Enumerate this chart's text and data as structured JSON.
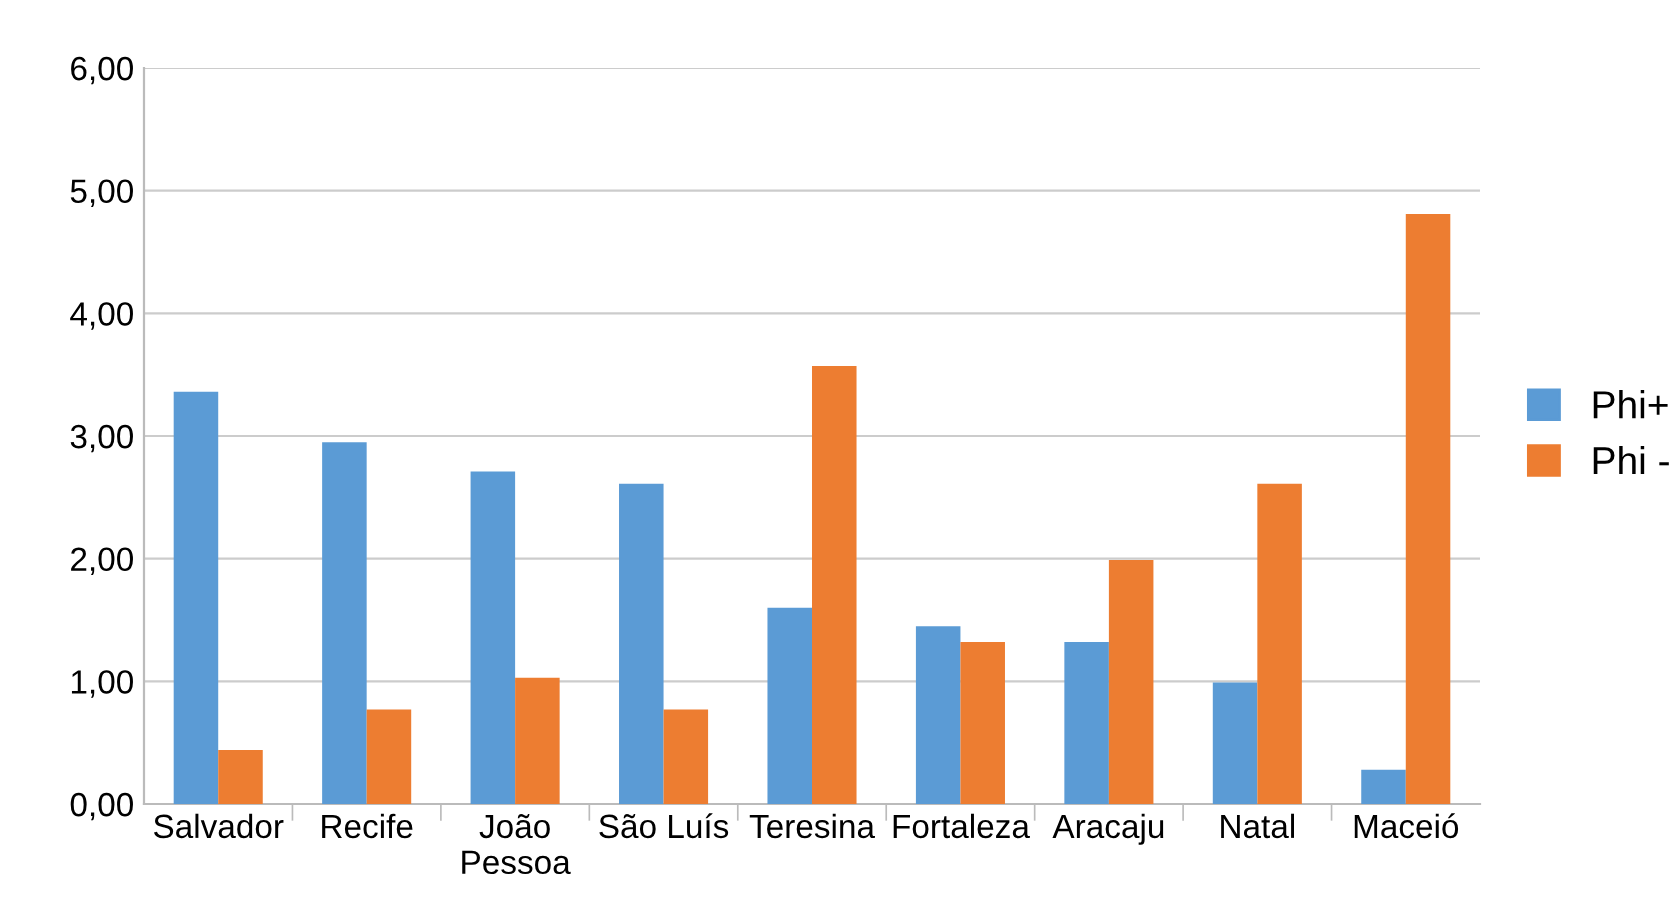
{
  "chart_data": {
    "type": "bar",
    "categories": [
      "Salvador",
      "Recife",
      "João\nPessoa",
      "São Luís",
      "Teresina",
      "Fortaleza",
      "Aracaju",
      "Natal",
      "Maceió"
    ],
    "series": [
      {
        "name": "Phi+",
        "color": "#5b9bd5",
        "values": [
          3.36,
          2.95,
          2.71,
          2.61,
          1.6,
          1.45,
          1.32,
          0.99,
          0.28
        ]
      },
      {
        "name": "Phi -",
        "color": "#ed7d31",
        "values": [
          0.44,
          0.77,
          1.03,
          0.77,
          3.57,
          1.32,
          1.99,
          2.61,
          4.81
        ]
      }
    ],
    "ylim": [
      0,
      6
    ],
    "yticks": [
      {
        "value": 0,
        "label": "0,00"
      },
      {
        "value": 1,
        "label": "1,00"
      },
      {
        "value": 2,
        "label": "2,00"
      },
      {
        "value": 3,
        "label": "3,00"
      },
      {
        "value": 4,
        "label": "4,00"
      },
      {
        "value": 5,
        "label": "5,00"
      },
      {
        "value": 6,
        "label": "6,00"
      }
    ],
    "grid": "y",
    "legend": "right"
  }
}
